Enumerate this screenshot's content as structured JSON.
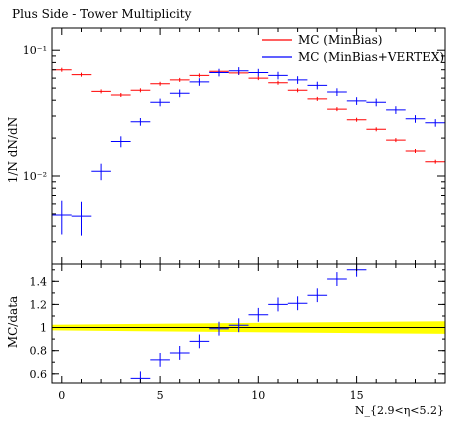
{
  "chart_data": [
    {
      "type": "scatter",
      "title": "Plus Side - Tower Multiplicity",
      "ylabel": "1/N dN/dN",
      "xlim": [
        -0.5,
        19.5
      ],
      "ylim": [
        0.002,
        0.15
      ],
      "yscale": "log",
      "yticks": [
        {
          "value": 0.01,
          "label": "10⁻²"
        },
        {
          "value": 0.1,
          "label": "10⁻¹"
        }
      ],
      "legend_position": "top-right",
      "series": [
        {
          "name": "MC (MinBias)",
          "color": "#ff0000",
          "x": [
            0,
            1,
            2,
            3,
            4,
            5,
            6,
            7,
            8,
            9,
            10,
            11,
            12,
            13,
            14,
            15,
            16,
            17,
            18,
            19
          ],
          "y": [
            0.07,
            0.064,
            0.047,
            0.044,
            0.048,
            0.054,
            0.058,
            0.063,
            0.068,
            0.066,
            0.06,
            0.055,
            0.048,
            0.041,
            0.034,
            0.028,
            0.0235,
            0.0193,
            0.0158,
            0.013
          ]
        },
        {
          "name": "MC (MinBias+VERTEX)",
          "color": "#0000ff",
          "x": [
            0,
            1,
            2,
            3,
            4,
            5,
            6,
            7,
            8,
            9,
            10,
            11,
            12,
            13,
            14,
            15,
            16,
            17,
            18,
            19
          ],
          "y": [
            0.0049,
            0.0048,
            0.0109,
            0.0188,
            0.027,
            0.0385,
            0.0455,
            0.056,
            0.0665,
            0.0685,
            0.0665,
            0.063,
            0.058,
            0.0525,
            0.0465,
            0.0395,
            0.0385,
            0.0335,
            0.0285,
            0.0265
          ]
        }
      ]
    },
    {
      "type": "scatter",
      "xlabel": "N_{2.9<η<5.2}",
      "ylabel": "MC/data",
      "xlim": [
        -0.5,
        19.5
      ],
      "ylim": [
        0.52,
        1.55
      ],
      "xticks": [
        0,
        5,
        10,
        15
      ],
      "yticks": [
        0.6,
        0.8,
        1,
        1.2,
        1.4
      ],
      "band": {
        "color": "#ffff00",
        "center": 1.0,
        "half_width_left": 0.025,
        "half_width_right": 0.055
      },
      "series": [
        {
          "name": "MC (MinBias+VERTEX)",
          "color": "#0000ff",
          "x": [
            4,
            5,
            6,
            7,
            8,
            9,
            10,
            11,
            12,
            13,
            14,
            15
          ],
          "y": [
            0.56,
            0.72,
            0.78,
            0.88,
            0.99,
            1.02,
            1.11,
            1.2,
            1.21,
            1.28,
            1.42,
            1.5
          ]
        }
      ]
    }
  ]
}
